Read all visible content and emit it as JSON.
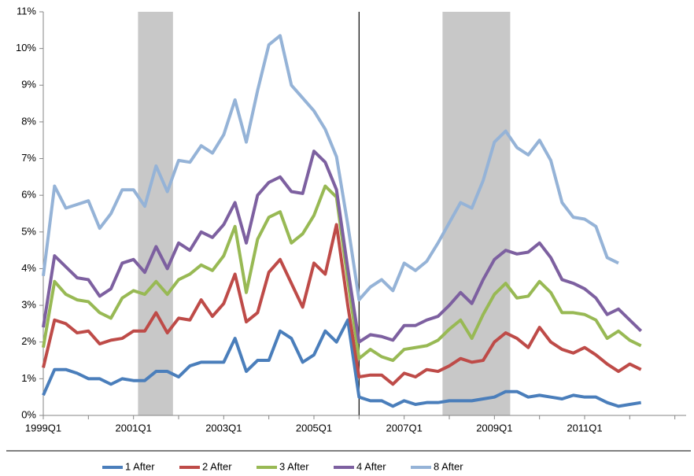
{
  "chart_data": {
    "type": "line",
    "categories": [
      "1999Q1",
      null,
      null,
      null,
      null,
      null,
      null,
      null,
      "2001Q1",
      null,
      null,
      null,
      null,
      null,
      null,
      null,
      "2003Q1",
      null,
      null,
      null,
      null,
      null,
      null,
      null,
      "2005Q1",
      null,
      null,
      null,
      null,
      null,
      null,
      null,
      "2007Q1",
      null,
      null,
      null,
      null,
      null,
      null,
      null,
      "2009Q1",
      null,
      null,
      null,
      null,
      null,
      null,
      null,
      "2011Q1",
      null,
      null,
      null,
      null,
      null,
      null,
      null,
      null,
      null
    ],
    "xtick_step": 4,
    "ylim": [
      0,
      11
    ],
    "yticks": [
      {
        "value": 0,
        "label": "0%"
      },
      {
        "value": 1,
        "label": "1%"
      },
      {
        "value": 2,
        "label": "2%"
      },
      {
        "value": 3,
        "label": "3%"
      },
      {
        "value": 4,
        "label": "4%"
      },
      {
        "value": 5,
        "label": "5%"
      },
      {
        "value": 6,
        "label": "6%"
      },
      {
        "value": 7,
        "label": "7%"
      },
      {
        "value": 8,
        "label": "8%"
      },
      {
        "value": 9,
        "label": "9%"
      },
      {
        "value": 10,
        "label": "10%"
      },
      {
        "value": 11,
        "label": "11%"
      }
    ],
    "shaded_ranges": [
      [
        8.4,
        11.5
      ],
      [
        35.4,
        41.4
      ]
    ],
    "shade_color": "#c8c8c8",
    "vline_at": 28,
    "legend": "bottom",
    "series": [
      {
        "name": "1 After",
        "color": "#4a7ebb",
        "values": [
          0.55,
          1.25,
          1.25,
          1.15,
          1.0,
          1.0,
          0.85,
          1.0,
          0.95,
          0.95,
          1.2,
          1.2,
          1.05,
          1.35,
          1.45,
          1.45,
          1.45,
          2.1,
          1.2,
          1.5,
          1.5,
          2.3,
          2.1,
          1.45,
          1.65,
          2.3,
          2.0,
          2.6,
          0.5,
          0.4,
          0.4,
          0.25,
          0.4,
          0.3,
          0.35,
          0.35,
          0.4,
          0.4,
          0.4,
          0.45,
          0.5,
          0.65,
          0.65,
          0.5,
          0.55,
          0.5,
          0.45,
          0.55,
          0.5,
          0.5,
          0.35,
          0.25,
          0.3,
          0.35,
          null,
          null,
          null,
          null
        ]
      },
      {
        "name": "2 After",
        "color": "#be4b48",
        "values": [
          1.3,
          2.6,
          2.5,
          2.25,
          2.3,
          1.95,
          2.05,
          2.1,
          2.3,
          2.3,
          2.8,
          2.25,
          2.65,
          2.6,
          3.15,
          2.7,
          3.05,
          3.85,
          2.55,
          2.8,
          3.9,
          4.25,
          3.6,
          2.95,
          4.15,
          3.85,
          5.2,
          3.0,
          1.05,
          1.1,
          1.1,
          0.85,
          1.15,
          1.05,
          1.25,
          1.2,
          1.35,
          1.55,
          1.45,
          1.5,
          2.0,
          2.25,
          2.1,
          1.85,
          2.4,
          2.0,
          1.8,
          1.7,
          1.85,
          1.65,
          1.4,
          1.2,
          1.4,
          1.25,
          null,
          null,
          null,
          null
        ]
      },
      {
        "name": "3 After",
        "color": "#98b954",
        "values": [
          1.85,
          3.65,
          3.3,
          3.15,
          3.1,
          2.8,
          2.65,
          3.2,
          3.4,
          3.3,
          3.65,
          3.3,
          3.7,
          3.85,
          4.1,
          3.95,
          4.35,
          5.15,
          3.35,
          4.8,
          5.4,
          5.55,
          4.7,
          4.95,
          5.45,
          6.25,
          5.95,
          3.7,
          1.55,
          1.8,
          1.6,
          1.5,
          1.8,
          1.85,
          1.9,
          2.05,
          2.35,
          2.6,
          2.1,
          2.75,
          3.3,
          3.6,
          3.2,
          3.25,
          3.65,
          3.35,
          2.8,
          2.8,
          2.75,
          2.6,
          2.1,
          2.3,
          2.05,
          1.9,
          null,
          null,
          null,
          null
        ]
      },
      {
        "name": "4 After",
        "color": "#7d60a0",
        "values": [
          2.4,
          4.35,
          4.05,
          3.75,
          3.7,
          3.25,
          3.45,
          4.15,
          4.25,
          3.9,
          4.6,
          4.0,
          4.7,
          4.5,
          5.0,
          4.85,
          5.2,
          5.8,
          4.7,
          6.0,
          6.35,
          6.5,
          6.1,
          6.05,
          7.2,
          6.9,
          6.15,
          4.0,
          2.0,
          2.2,
          2.15,
          2.05,
          2.45,
          2.45,
          2.6,
          2.7,
          3.0,
          3.35,
          3.05,
          3.7,
          4.25,
          4.5,
          4.4,
          4.45,
          4.7,
          4.3,
          3.7,
          3.6,
          3.45,
          3.2,
          2.75,
          2.9,
          2.6,
          2.3,
          null,
          null,
          null,
          null
        ]
      },
      {
        "name": "8 After",
        "color": "#95b3d7",
        "values": [
          3.8,
          6.25,
          5.65,
          5.75,
          5.85,
          5.1,
          5.5,
          6.15,
          6.15,
          5.7,
          6.8,
          6.1,
          6.95,
          6.9,
          7.35,
          7.15,
          7.65,
          8.6,
          7.45,
          8.85,
          10.1,
          10.35,
          9.0,
          8.65,
          8.3,
          7.8,
          7.05,
          5.2,
          3.15,
          3.5,
          3.7,
          3.4,
          4.15,
          3.95,
          4.2,
          4.7,
          5.25,
          5.8,
          5.65,
          6.4,
          7.45,
          7.75,
          7.3,
          7.1,
          7.5,
          6.95,
          5.8,
          5.4,
          5.35,
          5.15,
          4.3,
          4.15,
          null,
          null,
          null,
          null,
          null,
          null
        ]
      }
    ]
  }
}
